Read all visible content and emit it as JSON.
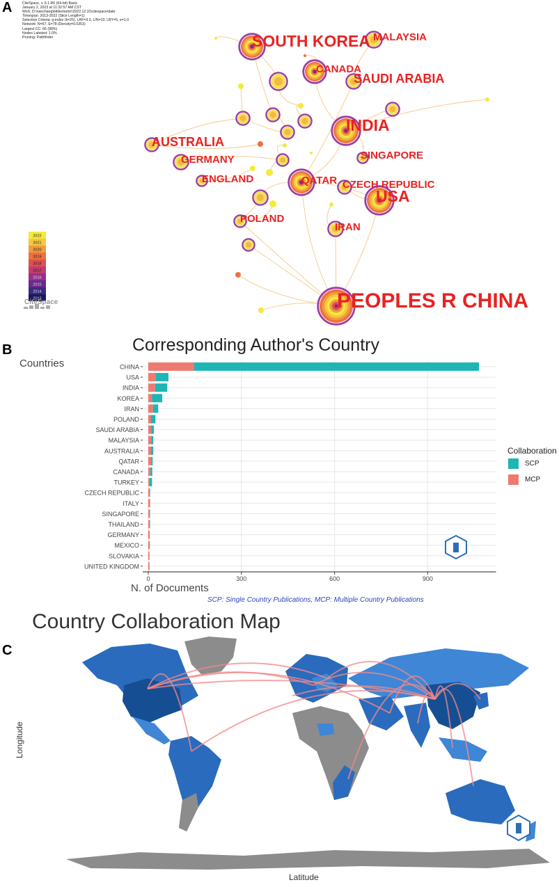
{
  "panels": {
    "a": "A",
    "b": "B",
    "c": "C"
  },
  "citespace": {
    "meta_lines": [
      "CiteSpace, v. 6.1.R6 (64-bit) Basic",
      "January 2, 2023 at 11:32:57 AM CST",
      "WoS: D:\\nanchang\\bibliometric\\2022.12.31\\citespace\\date",
      "Timespan: 2013-2022 (Slice Length=1)",
      "Selection Criteria: g-index (k=25), LRF=3.0, L/N=10, LBY=5, e=1.0",
      "Network: N=67, E=78 (Density=0.0353)",
      "Largest CC: 66 (98%)",
      "Nodes Labeled: 1.0%",
      "Pruning: Pathfinder"
    ],
    "logo_text": "CiteSpace",
    "years": [
      "2022",
      "2021",
      "2020",
      "2019",
      "2018",
      "2017",
      "2016",
      "2015",
      "2014",
      "2013"
    ],
    "year_colors": [
      "#f4ea3c",
      "#f5c842",
      "#f29a3e",
      "#ee7040",
      "#e0504e",
      "#c23b6e",
      "#9a2f8a",
      "#6a2a8e",
      "#3a2a7e",
      "#1a1a5a"
    ],
    "labels": [
      {
        "text": "SOUTH KOREA",
        "size": "large"
      },
      {
        "text": "MALAYSIA",
        "size": "small"
      },
      {
        "text": "CANADA",
        "size": "small"
      },
      {
        "text": "SAUDI ARABIA",
        "size": "medium"
      },
      {
        "text": "INDIA",
        "size": "large"
      },
      {
        "text": "AUSTRALIA",
        "size": "medium"
      },
      {
        "text": "GERMANY",
        "size": "small"
      },
      {
        "text": "SINGAPORE",
        "size": "small"
      },
      {
        "text": "ENGLAND",
        "size": "small"
      },
      {
        "text": "QATAR",
        "size": "small"
      },
      {
        "text": "CZECH REPUBLIC",
        "size": "small"
      },
      {
        "text": "USA",
        "size": "large"
      },
      {
        "text": "POLAND",
        "size": "small"
      },
      {
        "text": "IRAN",
        "size": "small"
      },
      {
        "text": "PEOPLES R CHINA",
        "size": "xlarge"
      }
    ]
  },
  "bar_chart": {
    "title": "Corresponding Author's Country",
    "y_label": "Countries",
    "x_label": "N. of Documents",
    "note": "SCP: Single Country Publications, MCP: Multiple Country Publications",
    "legend_title": "Collaboration",
    "colors": {
      "SCP": "#1eb5b5",
      "MCP": "#ee7b70"
    }
  },
  "chart_data": {
    "type": "bar",
    "orientation": "horizontal",
    "stacked": true,
    "categories": [
      "CHINA",
      "USA",
      "INDIA",
      "KOREA",
      "IRAN",
      "POLAND",
      "SAUDI ARABIA",
      "MALAYSIA",
      "AUSTRALIA",
      "QATAR",
      "CANADA",
      "TURKEY",
      "CZECH REPUBLIC",
      "ITALY",
      "SINGAPORE",
      "THAILAND",
      "GERMANY",
      "MEXICO",
      "SLOVAKIA",
      "UNITED KINGDOM"
    ],
    "series": [
      {
        "name": "MCP",
        "values": [
          148,
          24,
          22,
          12,
          15,
          9,
          10,
          10,
          9,
          10,
          7,
          4,
          5,
          6,
          5,
          5,
          5,
          3,
          4,
          4
        ]
      },
      {
        "name": "SCP",
        "values": [
          917,
          41,
          39,
          33,
          17,
          14,
          8,
          6,
          7,
          4,
          6,
          8,
          1,
          0,
          1,
          1,
          0,
          2,
          0,
          0
        ]
      }
    ],
    "x_ticks": [
      0,
      300,
      600,
      900
    ],
    "xlim": [
      0,
      1120
    ],
    "legend": [
      "SCP",
      "MCP"
    ],
    "legend_position": "right",
    "grid": true
  },
  "map": {
    "title": "Country Collaboration Map",
    "x_label": "Latitude",
    "y_label": "Longitude",
    "colors": {
      "ocean": "#ffffff",
      "land_none": "#8c8c8c",
      "land_low": "#3f86d6",
      "land_mid": "#2a6bbd",
      "land_high": "#164e93",
      "links": "#f08a8a"
    }
  }
}
